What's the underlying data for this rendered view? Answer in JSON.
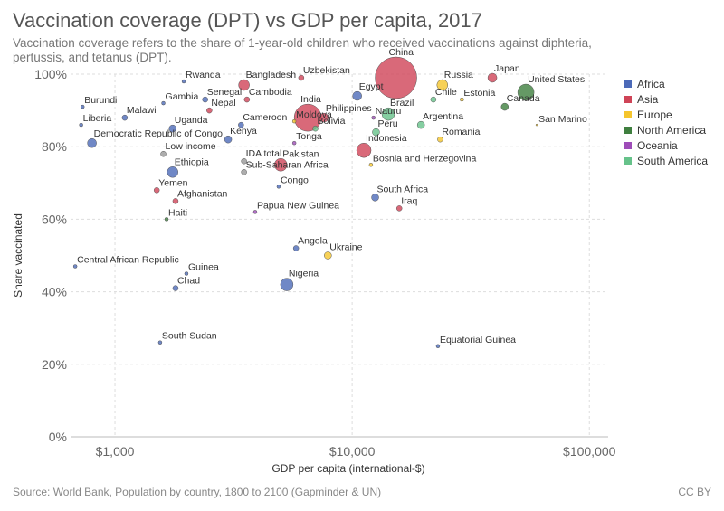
{
  "title": "Vaccination coverage (DPT) vs GDP per capita, 2017",
  "subtitle": "Vaccination coverage refers to the share of 1-year-old children who received vaccinations against diphteria, pertussis, and tetanus (DPT).",
  "source": "Source: World Bank, Population by country, 1800 to 2100 (Gapminder & UN)",
  "license": "CC BY",
  "colors": {
    "Africa": "#4c6ab8",
    "Asia": "#cf4457",
    "Europe": "#f5c52d",
    "North America": "#3f7f3f",
    "Oceania": "#9e4cb8",
    "South America": "#66c28a",
    "Other": "#999999"
  },
  "chart_data": {
    "type": "scatter",
    "title": "Vaccination coverage (DPT) vs GDP per capita, 2017",
    "xlabel": "GDP per capita (international-$)",
    "ylabel": "Share vaccinated",
    "xscale": "log",
    "xlim": [
      650,
      120000
    ],
    "ylim": [
      0,
      100
    ],
    "x_ticks": [
      1000,
      10000,
      100000
    ],
    "x_tick_labels": [
      "$1,000",
      "$10,000",
      "$100,000"
    ],
    "y_ticks": [
      0,
      20,
      40,
      60,
      80,
      100
    ],
    "y_tick_labels": [
      "0%",
      "20%",
      "40%",
      "60%",
      "80%",
      "100%"
    ],
    "grid": true,
    "legend_position": "right",
    "legend": [
      "Africa",
      "Asia",
      "Europe",
      "North America",
      "Oceania",
      "South America"
    ],
    "points": [
      {
        "label": "China",
        "x": 15300,
        "y": 99,
        "region": "Asia",
        "size": 23
      },
      {
        "label": "India",
        "x": 6500,
        "y": 88,
        "region": "Asia",
        "size": 15
      },
      {
        "label": "United States",
        "x": 54000,
        "y": 95,
        "region": "North America",
        "size": 9
      },
      {
        "label": "Indonesia",
        "x": 11200,
        "y": 79,
        "region": "Asia",
        "size": 8
      },
      {
        "label": "Brazil",
        "x": 14200,
        "y": 89,
        "region": "South America",
        "size": 7
      },
      {
        "label": "Pakistan",
        "x": 5000,
        "y": 75,
        "region": "Asia",
        "size": 7
      },
      {
        "label": "Nigeria",
        "x": 5300,
        "y": 42,
        "region": "Africa",
        "size": 7
      },
      {
        "label": "Bangladesh",
        "x": 3500,
        "y": 97,
        "region": "Asia",
        "size": 6
      },
      {
        "label": "Russia",
        "x": 24000,
        "y": 97,
        "region": "Europe",
        "size": 6
      },
      {
        "label": "Japan",
        "x": 39000,
        "y": 99,
        "region": "Asia",
        "size": 5
      },
      {
        "label": "Ethiopia",
        "x": 1750,
        "y": 73,
        "region": "Africa",
        "size": 6
      },
      {
        "label": "Philippines",
        "x": 7600,
        "y": 88,
        "region": "Asia",
        "size": 5
      },
      {
        "label": "Egypt",
        "x": 10500,
        "y": 94,
        "region": "Africa",
        "size": 5
      },
      {
        "label": "Democratic Republic of Congo",
        "x": 800,
        "y": 81,
        "region": "Africa",
        "size": 5
      },
      {
        "label": "Iraq",
        "x": 15800,
        "y": 63,
        "region": "Asia",
        "size": 3
      },
      {
        "label": "South Africa",
        "x": 12500,
        "y": 66,
        "region": "Africa",
        "size": 4
      },
      {
        "label": "Argentina",
        "x": 19500,
        "y": 86,
        "region": "South America",
        "size": 4
      },
      {
        "label": "Canada",
        "x": 44000,
        "y": 91,
        "region": "North America",
        "size": 4
      },
      {
        "label": "Uzbekistan",
        "x": 6100,
        "y": 99,
        "region": "Asia",
        "size": 3
      },
      {
        "label": "Nepal",
        "x": 2500,
        "y": 90,
        "region": "Asia",
        "size": 3
      },
      {
        "label": "Cameroon",
        "x": 3400,
        "y": 86,
        "region": "Africa",
        "size": 3
      },
      {
        "label": "Kenya",
        "x": 3000,
        "y": 82,
        "region": "Africa",
        "size": 4
      },
      {
        "label": "Uganda",
        "x": 1750,
        "y": 85,
        "region": "Africa",
        "size": 4
      },
      {
        "label": "Yemen",
        "x": 1500,
        "y": 68,
        "region": "Asia",
        "size": 3
      },
      {
        "label": "Afghanistan",
        "x": 1800,
        "y": 65,
        "region": "Asia",
        "size": 3
      },
      {
        "label": "Haiti",
        "x": 1650,
        "y": 60,
        "region": "North America",
        "size": 2
      },
      {
        "label": "Angola",
        "x": 5800,
        "y": 52,
        "region": "Africa",
        "size": 3
      },
      {
        "label": "Ukraine",
        "x": 7900,
        "y": 50,
        "region": "Europe",
        "size": 4
      },
      {
        "label": "Central African Republic",
        "x": 680,
        "y": 47,
        "region": "Africa",
        "size": 2
      },
      {
        "label": "Guinea",
        "x": 2000,
        "y": 45,
        "region": "Africa",
        "size": 2
      },
      {
        "label": "Chad",
        "x": 1800,
        "y": 41,
        "region": "Africa",
        "size": 3
      },
      {
        "label": "South Sudan",
        "x": 1550,
        "y": 26,
        "region": "Africa",
        "size": 2
      },
      {
        "label": "Equatorial Guinea",
        "x": 23000,
        "y": 25,
        "region": "Africa",
        "size": 2
      },
      {
        "label": "Papua New Guinea",
        "x": 3900,
        "y": 62,
        "region": "Oceania",
        "size": 2
      },
      {
        "label": "Congo",
        "x": 4900,
        "y": 69,
        "region": "Africa",
        "size": 2
      },
      {
        "label": "Burundi",
        "x": 730,
        "y": 91,
        "region": "Africa",
        "size": 2
      },
      {
        "label": "Liberia",
        "x": 720,
        "y": 86,
        "region": "Africa",
        "size": 2
      },
      {
        "label": "Malawi",
        "x": 1100,
        "y": 88,
        "region": "Africa",
        "size": 3
      },
      {
        "label": "Gambia",
        "x": 1600,
        "y": 92,
        "region": "Africa",
        "size": 2
      },
      {
        "label": "Senegal",
        "x": 2400,
        "y": 93,
        "region": "Africa",
        "size": 3
      },
      {
        "label": "Rwanda",
        "x": 1950,
        "y": 98,
        "region": "Africa",
        "size": 2
      },
      {
        "label": "Cambodia",
        "x": 3600,
        "y": 93,
        "region": "Asia",
        "size": 3
      },
      {
        "label": "Moldova",
        "x": 5700,
        "y": 87,
        "region": "Europe",
        "size": 2
      },
      {
        "label": "Bolivia",
        "x": 7000,
        "y": 85,
        "region": "South America",
        "size": 3
      },
      {
        "label": "Tonga",
        "x": 5700,
        "y": 81,
        "region": "Oceania",
        "size": 2
      },
      {
        "label": "Nauru",
        "x": 12300,
        "y": 88,
        "region": "Oceania",
        "size": 2
      },
      {
        "label": "Peru",
        "x": 12600,
        "y": 84,
        "region": "South America",
        "size": 4
      },
      {
        "label": "Chile",
        "x": 22000,
        "y": 93,
        "region": "South America",
        "size": 3
      },
      {
        "label": "Estonia",
        "x": 29000,
        "y": 93,
        "region": "Europe",
        "size": 2
      },
      {
        "label": "Romania",
        "x": 23500,
        "y": 82,
        "region": "Europe",
        "size": 3
      },
      {
        "label": "Bosnia and Herzegovina",
        "x": 12000,
        "y": 75,
        "region": "Europe",
        "size": 2
      },
      {
        "label": "San Marino",
        "x": 60000,
        "y": 86,
        "region": "Europe",
        "size": 1
      },
      {
        "label": "Low income",
        "x": 1600,
        "y": 78,
        "region": "Other",
        "size": 3
      },
      {
        "label": "IDA total",
        "x": 3500,
        "y": 76,
        "region": "Other",
        "size": 3
      },
      {
        "label": "Sub-Saharan Africa",
        "x": 3500,
        "y": 73,
        "region": "Other",
        "size": 3
      }
    ]
  }
}
